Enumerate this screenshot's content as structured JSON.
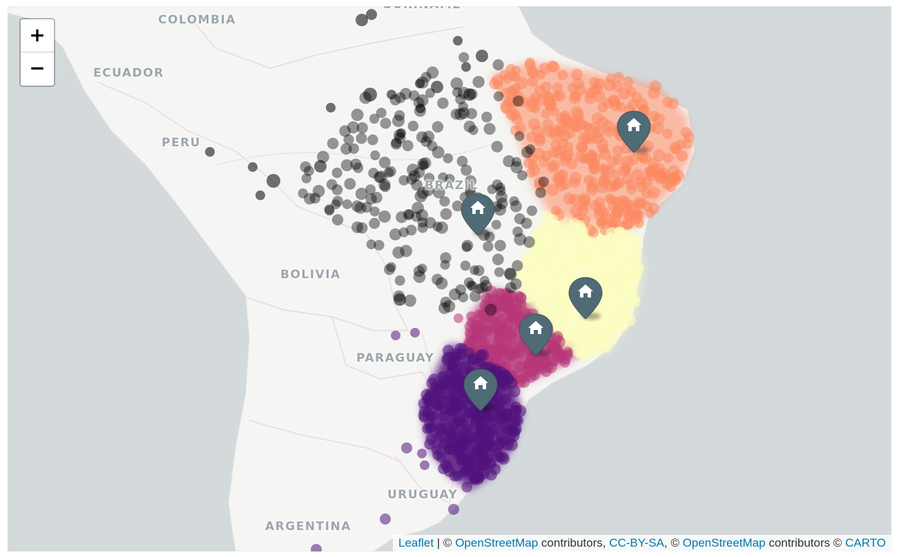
{
  "map": {
    "zoom_in_label": "+",
    "zoom_out_label": "−",
    "country_labels": [
      "COLOMBIA",
      "SURINAME",
      "ECUADOR",
      "PERU",
      "BRAZIL",
      "BOLIVIA",
      "PARAGUAY",
      "URUGUAY",
      "ARGENTINA"
    ],
    "marker_icon": "home-icon",
    "marker_count": 5,
    "colors": {
      "water": "#d4dadc",
      "land": "#f5f5f3",
      "cluster_north": "#000000",
      "cluster_northeast": "#fc8961",
      "cluster_southeast": "#fcfdbf",
      "cluster_central_south": "#b73779",
      "cluster_south": "#51127c",
      "marker": "#4f6b75"
    }
  },
  "attribution": {
    "leaflet": "Leaflet",
    "sep1": " | © ",
    "osm1": "OpenStreetMap",
    "contrib1": " contributors, ",
    "ccbysa": "CC-BY-SA",
    "sep2": ", © ",
    "osm2": "OpenStreetMap",
    "contrib2": " contributors © ",
    "carto": "CARTO"
  }
}
